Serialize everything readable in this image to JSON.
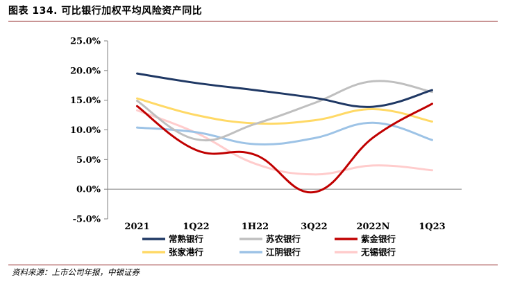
{
  "figure": {
    "title": "图表 134.  可比银行加权平均风险资产同比",
    "source": "资料来源：上市公司年报，中银证券"
  },
  "chart_data": {
    "type": "line",
    "categories": [
      "2021",
      "1Q22",
      "1H22",
      "3Q22",
      "2022N",
      "1Q23"
    ],
    "ylim": [
      -5.0,
      25.0
    ],
    "y_ticks": [
      -5.0,
      0.0,
      5.0,
      10.0,
      15.0,
      20.0,
      25.0
    ],
    "y_tick_labels": [
      "-5.0%",
      "0.0%",
      "5.0%",
      "10.0%",
      "15.0%",
      "20.0%",
      "25.0%"
    ],
    "grid": false,
    "legend_position": "bottom",
    "series": [
      {
        "name": "常熟银行",
        "color": "#1f3864",
        "values": [
          19.5,
          17.9,
          16.7,
          15.4,
          13.9,
          16.7
        ]
      },
      {
        "name": "苏农银行",
        "color": "#bfbfbf",
        "values": [
          14.9,
          8.4,
          11.0,
          14.5,
          18.2,
          16.4
        ]
      },
      {
        "name": "紫金银行",
        "color": "#c00000",
        "values": [
          14.0,
          6.6,
          5.8,
          -0.5,
          8.7,
          14.4
        ]
      },
      {
        "name": "张家港行",
        "color": "#ffd966",
        "values": [
          15.3,
          12.5,
          11.1,
          11.6,
          13.5,
          11.4
        ]
      },
      {
        "name": "江阴银行",
        "color": "#9dc3e6",
        "values": [
          10.4,
          9.6,
          7.6,
          8.6,
          11.2,
          8.3
        ]
      },
      {
        "name": "无锡银行",
        "color": "#ffcccc",
        "values": [
          13.3,
          9.5,
          4.3,
          2.5,
          4.0,
          3.2
        ]
      }
    ]
  }
}
